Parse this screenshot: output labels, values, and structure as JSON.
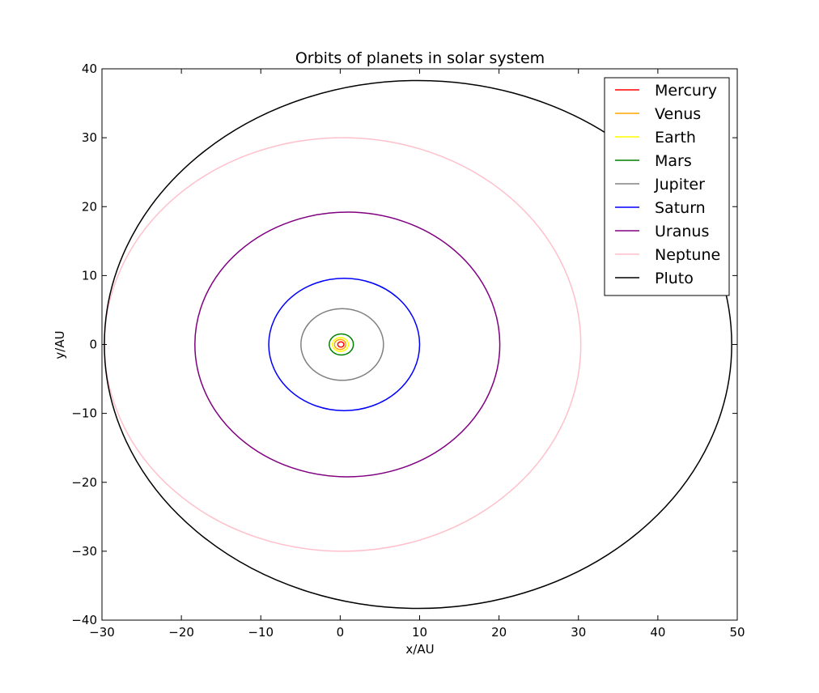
{
  "chart_data": {
    "type": "line",
    "title": "Orbits of planets in solar system",
    "xlabel": "x/AU",
    "ylabel": "y/AU",
    "xlim": [
      -30,
      50
    ],
    "ylim": [
      -40,
      40
    ],
    "xticks": [
      -30,
      -20,
      -10,
      0,
      10,
      20,
      30,
      40,
      50
    ],
    "yticks": [
      -40,
      -30,
      -20,
      -10,
      0,
      10,
      20,
      30,
      40
    ],
    "grid": false,
    "legend_position": "top-right",
    "series": [
      {
        "name": "Mercury",
        "color": "#ff0000",
        "center": [
          0.08,
          0.0
        ],
        "semi_axes": [
          0.39,
          0.38
        ]
      },
      {
        "name": "Venus",
        "color": "#ffa500",
        "center": [
          0.0,
          0.0
        ],
        "semi_axes": [
          0.72,
          0.72
        ]
      },
      {
        "name": "Earth",
        "color": "#ffff00",
        "center": [
          0.02,
          0.0
        ],
        "semi_axes": [
          1.0,
          1.0
        ]
      },
      {
        "name": "Mars",
        "color": "#008000",
        "center": [
          0.14,
          0.0
        ],
        "semi_axes": [
          1.52,
          1.52
        ]
      },
      {
        "name": "Jupiter",
        "color": "#808080",
        "center": [
          0.25,
          0.0
        ],
        "semi_axes": [
          5.2,
          5.2
        ]
      },
      {
        "name": "Saturn",
        "color": "#0000ff",
        "center": [
          0.5,
          0.0
        ],
        "semi_axes": [
          9.5,
          9.6
        ]
      },
      {
        "name": "Uranus",
        "color": "#800080",
        "center": [
          0.9,
          0.0
        ],
        "semi_axes": [
          19.2,
          19.2
        ]
      },
      {
        "name": "Neptune",
        "color": "#ffc0cb",
        "center": [
          0.3,
          0.0
        ],
        "semi_axes": [
          30.0,
          30.0
        ]
      },
      {
        "name": "Pluto",
        "color": "#000000",
        "center": [
          9.8,
          0.0
        ],
        "semi_axes": [
          39.5,
          38.3
        ]
      }
    ]
  }
}
